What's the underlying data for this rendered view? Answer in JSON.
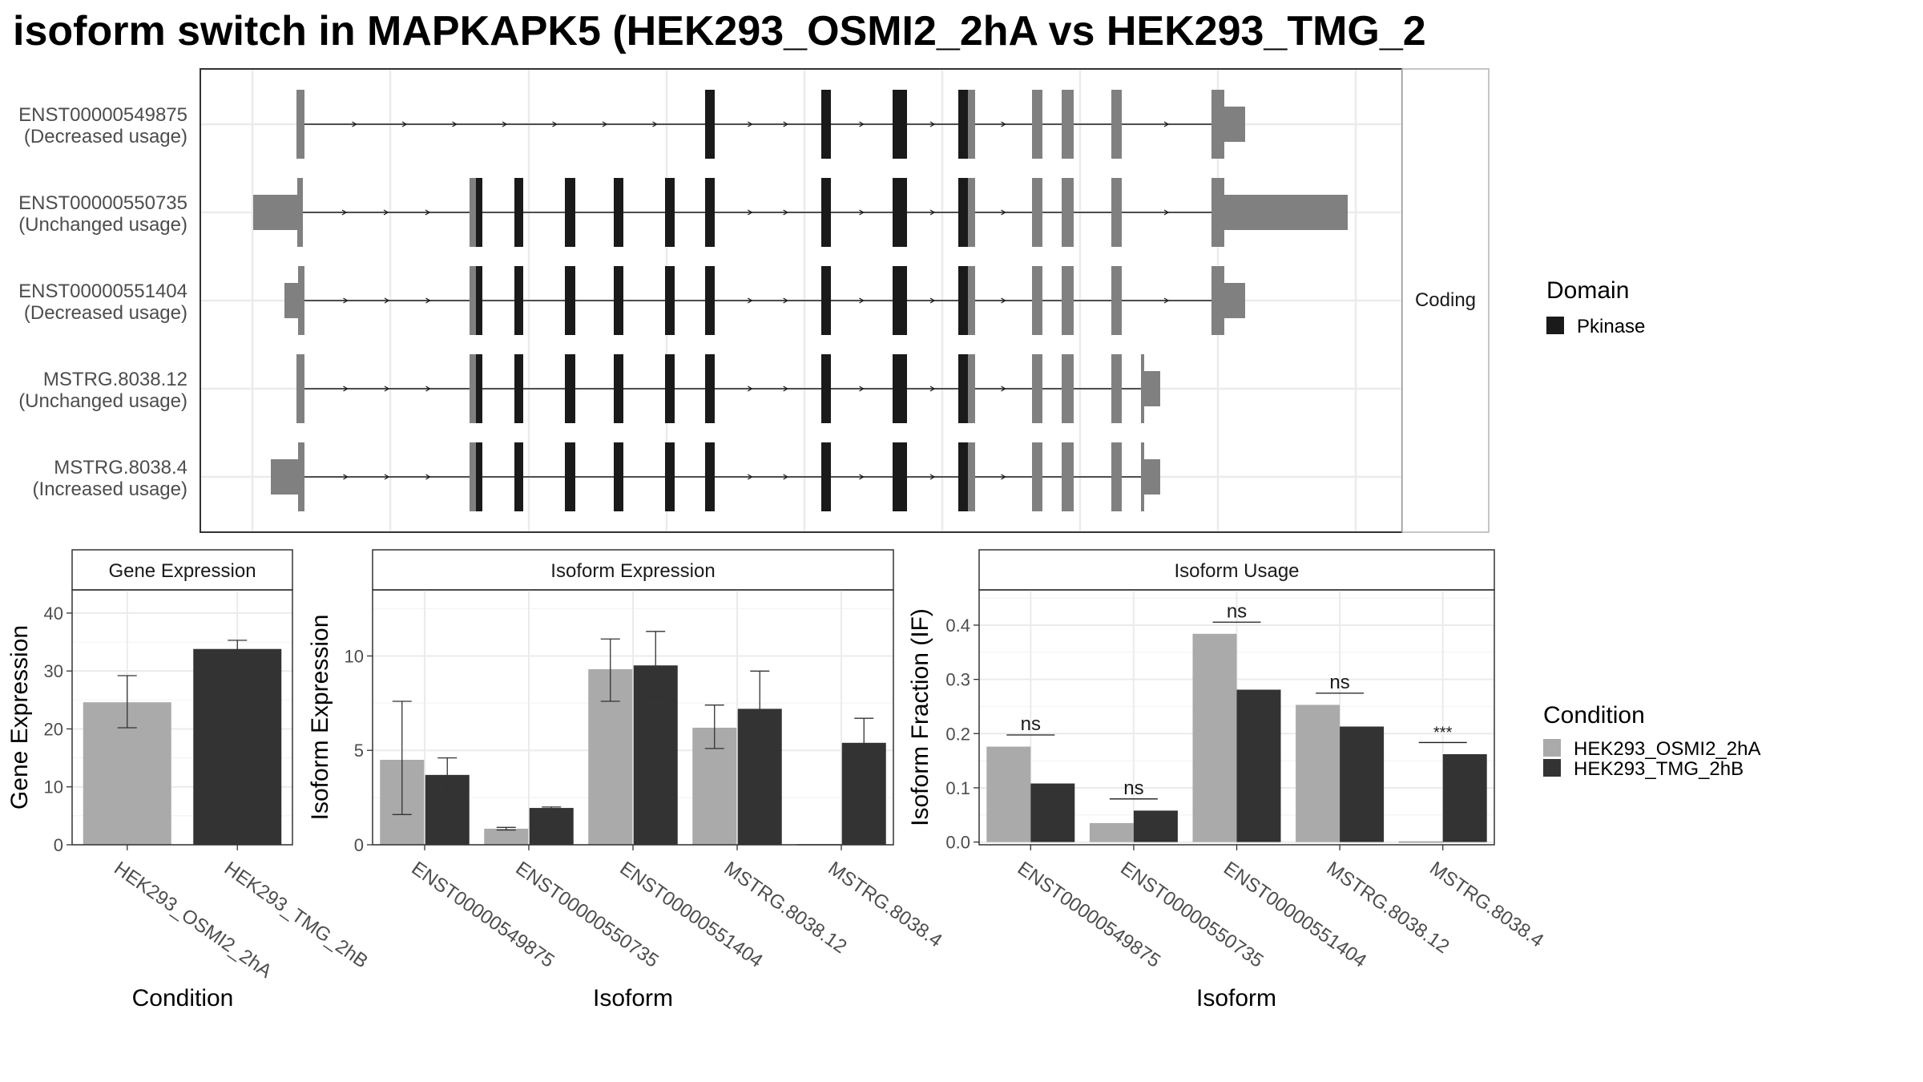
{
  "title": "isoform switch in MAPKAPK5 (HEK293_OSMI2_2hA vs HEK293_TMG_2",
  "colors": {
    "osmi": "#aaaaaa",
    "tmg": "#333333",
    "domain": "#1a1a1a",
    "noncoding_exon": "#808080",
    "grid": "#ebebeb",
    "strip_bg": "#ffffff"
  },
  "structure": {
    "strip_label": "Coding",
    "transcripts": [
      {
        "id": "ENST00000549875",
        "usage": "(Decreased usage)"
      },
      {
        "id": "ENST00000550735",
        "usage": "(Unchanged usage)"
      },
      {
        "id": "ENST00000551404",
        "usage": "(Decreased usage)"
      },
      {
        "id": "MSTRG.8038.12",
        "usage": "(Unchanged usage)"
      },
      {
        "id": "MSTRG.8038.4",
        "usage": "(Increased usage)"
      }
    ],
    "legend_title": "Domain",
    "legend_items": [
      {
        "label": "Pkinase",
        "color": "#1a1a1a"
      }
    ]
  },
  "condition_legend": {
    "title": "Condition",
    "items": [
      {
        "label": "HEK293_OSMI2_2hA",
        "color": "#aaaaaa"
      },
      {
        "label": "HEK293_TMG_2hB",
        "color": "#333333"
      }
    ]
  },
  "chart_data": [
    {
      "type": "bar",
      "title": "Gene Expression",
      "xlabel": "Condition",
      "ylabel": "Gene Expression",
      "categories": [
        "HEK293_OSMI2_2hA",
        "HEK293_TMG_2hB"
      ],
      "values": [
        24.6,
        33.8
      ],
      "error": [
        [
          20.2,
          29.2
        ],
        [
          32.3,
          35.3
        ]
      ],
      "ylim": [
        0,
        44
      ],
      "yticks": [
        0,
        10,
        20,
        30,
        40
      ],
      "grid": true
    },
    {
      "type": "bar",
      "title": "Isoform Expression",
      "xlabel": "Isoform",
      "ylabel": "Isoform Expression",
      "categories": [
        "ENST00000549875",
        "ENST00000550735",
        "ENST00000551404",
        "MSTRG.8038.12",
        "MSTRG.8038.4"
      ],
      "series": [
        {
          "name": "HEK293_OSMI2_2hA",
          "values": [
            4.5,
            0.85,
            9.3,
            6.2,
            0.0
          ],
          "error": [
            [
              1.6,
              7.6
            ],
            [
              0.78,
              0.92
            ],
            [
              7.6,
              10.9
            ],
            [
              5.1,
              7.4
            ],
            [
              0.0,
              0.0
            ]
          ]
        },
        {
          "name": "HEK293_TMG_2hB",
          "values": [
            3.7,
            1.95,
            9.5,
            7.2,
            5.4
          ],
          "error": [
            [
              2.7,
              4.6
            ],
            [
              1.9,
              2.0
            ],
            [
              7.8,
              11.3
            ],
            [
              5.3,
              9.2
            ],
            [
              4.2,
              6.7
            ]
          ]
        }
      ],
      "ylim": [
        0,
        13.5
      ],
      "yticks": [
        0,
        5,
        10
      ],
      "grid": true
    },
    {
      "type": "bar",
      "title": "Isoform Usage",
      "xlabel": "Isoform",
      "ylabel": "Isoform Fraction (IF)",
      "categories": [
        "ENST00000549875",
        "ENST00000550735",
        "ENST00000551404",
        "MSTRG.8038.12",
        "MSTRG.8038.4"
      ],
      "series": [
        {
          "name": "HEK293_OSMI2_2hA",
          "values": [
            0.176,
            0.035,
            0.384,
            0.253,
            0.0
          ]
        },
        {
          "name": "HEK293_TMG_2hB",
          "values": [
            0.108,
            0.058,
            0.281,
            0.213,
            0.162
          ]
        }
      ],
      "significance": [
        "ns",
        "ns",
        "ns",
        "ns",
        "***"
      ],
      "ylim": [
        -0.005,
        0.465
      ],
      "yticks": [
        0.0,
        0.1,
        0.2,
        0.3,
        0.4
      ],
      "ytick_labels": [
        "0.0",
        "0.1",
        "0.2",
        "0.3",
        "0.4"
      ],
      "grid": true
    }
  ]
}
